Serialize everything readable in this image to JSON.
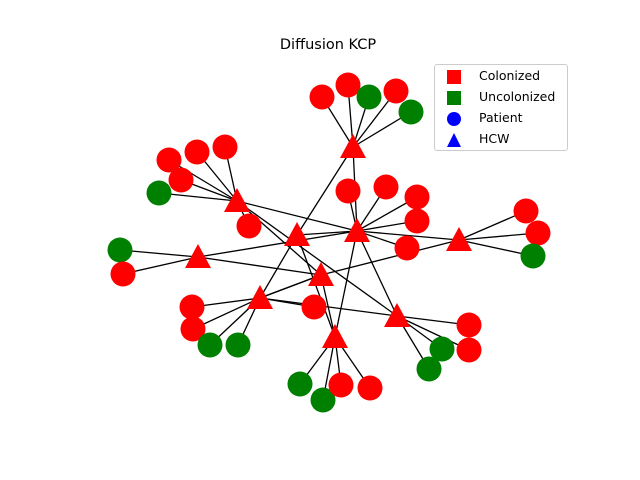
{
  "title": "Diffusion KCP",
  "colors": {
    "colonized": "#ff0000",
    "uncolonized": "#008000",
    "legend_shape": "#0000ff",
    "edge": "#000000"
  },
  "legend": [
    {
      "label": "Colonized",
      "marker": "square",
      "color": "#ff0000"
    },
    {
      "label": "Uncolonized",
      "marker": "square",
      "color": "#008000"
    },
    {
      "label": "Patient",
      "marker": "circle",
      "color": "#0000ff"
    },
    {
      "label": "HCW",
      "marker": "triangle",
      "color": "#0000ff"
    }
  ]
}
